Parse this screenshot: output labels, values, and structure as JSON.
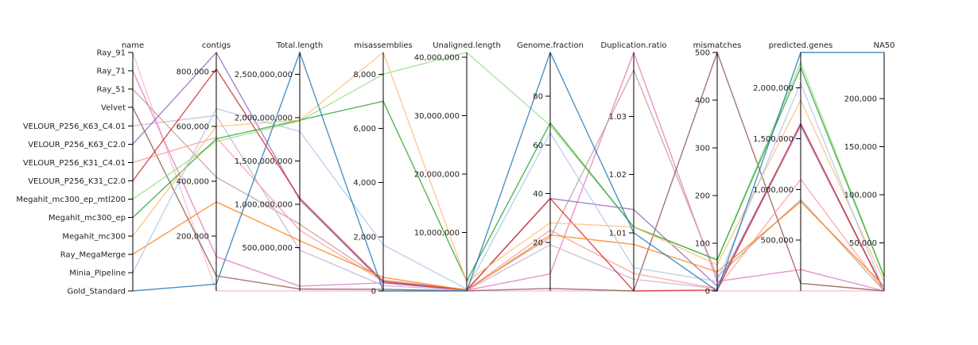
{
  "chart_data": {
    "type": "parallel-coordinates",
    "axes": [
      {
        "key": "name",
        "label": "name",
        "kind": "categorical",
        "categories": [
          "Ray_91",
          "Ray_71",
          "Ray_51",
          "Velvet",
          "VELOUR_P256_K63_C4.01",
          "VELOUR_P256_K63_C2.0",
          "VELOUR_P256_K31_C4.01",
          "VELOUR_P256_K31_C2.0",
          "Megahit_mc300_ep_mtl200",
          "Megahit_mc300_ep",
          "Megahit_mc300",
          "Ray_MegaMerge",
          "Minia_Pipeline",
          "Gold_Standard"
        ]
      },
      {
        "key": "contigs",
        "label": "contigs",
        "kind": "numeric",
        "range": [
          0,
          870000
        ],
        "ticks": [
          {
            "v": 200000,
            "label": "200,000"
          },
          {
            "v": 400000,
            "label": "400,000"
          },
          {
            "v": 600000,
            "label": "600,000"
          },
          {
            "v": 800000,
            "label": "800,000"
          }
        ]
      },
      {
        "key": "total_length",
        "label": "Total.length",
        "kind": "numeric",
        "range": [
          0,
          2750000000
        ],
        "ticks": [
          {
            "v": 500000000,
            "label": "500,000,000"
          },
          {
            "v": 1000000000,
            "label": "1,000,000,000"
          },
          {
            "v": 1500000000,
            "label": "1,500,000,000"
          },
          {
            "v": 2000000000,
            "label": "2,000,000,000"
          },
          {
            "v": 2500000000,
            "label": "2,500,000,000"
          }
        ]
      },
      {
        "key": "misassemblies",
        "label": "misassemblies",
        "kind": "numeric",
        "range": [
          0,
          8800
        ],
        "ticks": [
          {
            "v": 0,
            "label": "0"
          },
          {
            "v": 2000,
            "label": "2,000"
          },
          {
            "v": 4000,
            "label": "4,000"
          },
          {
            "v": 6000,
            "label": "6,000"
          },
          {
            "v": 8000,
            "label": "8,000"
          }
        ]
      },
      {
        "key": "unaligned_length",
        "label": "Unaligned.length",
        "kind": "numeric",
        "range": [
          0,
          40800000
        ],
        "ticks": [
          {
            "v": 10000000,
            "label": "10,000,000"
          },
          {
            "v": 20000000,
            "label": "20,000,000"
          },
          {
            "v": 30000000,
            "label": "30,000,000"
          },
          {
            "v": 40000000,
            "label": "40,000,000"
          }
        ]
      },
      {
        "key": "genome_fraction",
        "label": "Genome.fraction",
        "kind": "numeric",
        "range": [
          0,
          98
        ],
        "ticks": [
          {
            "v": 20,
            "label": "20"
          },
          {
            "v": 40,
            "label": "40"
          },
          {
            "v": 60,
            "label": "60"
          },
          {
            "v": 80,
            "label": "80"
          }
        ]
      },
      {
        "key": "duplication_ratio",
        "label": "Duplication.ratio",
        "kind": "numeric",
        "range": [
          1.0,
          1.041
        ],
        "ticks": [
          {
            "v": 1.01,
            "label": "1.01"
          },
          {
            "v": 1.02,
            "label": "1.02"
          },
          {
            "v": 1.03,
            "label": "1.03"
          }
        ]
      },
      {
        "key": "mismatches",
        "label": "mismatches",
        "kind": "numeric",
        "range": [
          0,
          500
        ],
        "ticks": [
          {
            "v": 0,
            "label": "0"
          },
          {
            "v": 100,
            "label": "100"
          },
          {
            "v": 200,
            "label": "200"
          },
          {
            "v": 300,
            "label": "300"
          },
          {
            "v": 400,
            "label": "400"
          },
          {
            "v": 500,
            "label": "500"
          }
        ]
      },
      {
        "key": "predicted_genes",
        "label": "predicted.genes",
        "kind": "numeric",
        "range": [
          0,
          2350000
        ],
        "ticks": [
          {
            "v": 500000,
            "label": "500,000"
          },
          {
            "v": 1000000,
            "label": "1,000,000"
          },
          {
            "v": 1500000,
            "label": "1,500,000"
          },
          {
            "v": 2000000,
            "label": "2,000,000"
          }
        ]
      },
      {
        "key": "na50",
        "label": "NA50",
        "kind": "numeric",
        "range": [
          0,
          248000
        ],
        "ticks": [
          {
            "v": 50000,
            "label": "50,000"
          },
          {
            "v": 100000,
            "label": "100,000"
          },
          {
            "v": 150000,
            "label": "150,000"
          },
          {
            "v": 200000,
            "label": "200,000"
          }
        ]
      }
    ],
    "series": [
      {
        "name": "Ray_91",
        "color": "#f7b6d2",
        "values": [
          "Ray_91",
          0,
          0,
          0,
          0,
          0,
          1.0,
          0,
          0,
          0
        ]
      },
      {
        "name": "Ray_71",
        "color": "#e377c2",
        "values": [
          "Ray_71",
          125000,
          55000000,
          300,
          120000,
          7,
          1.041,
          20,
          210000,
          0
        ]
      },
      {
        "name": "Ray_51",
        "color": "#c49c94",
        "values": [
          "Ray_51",
          415000,
          770000000,
          400,
          250000,
          22,
          1.038,
          30,
          900000,
          0
        ]
      },
      {
        "name": "Velvet",
        "color": "#8c564b",
        "values": [
          "Velvet",
          55000,
          22000000,
          60,
          30000,
          1,
          1.0,
          500,
          75000,
          0
        ]
      },
      {
        "name": "VELOUR_P256_K63_C4.01",
        "color": "#c5b0d5",
        "values": [
          "VELOUR_P256_K63_C4.01",
          640000,
          470000000,
          200,
          100000,
          19,
          1.002,
          5,
          1620000,
          0
        ]
      },
      {
        "name": "VELOUR_P256_K63_C2.0",
        "color": "#9467bd",
        "values": [
          "VELOUR_P256_K63_C2.0",
          870000,
          1050000000,
          300,
          150000,
          38,
          1.014,
          10,
          1640000,
          0
        ]
      },
      {
        "name": "VELOUR_P256_K31_C4.01",
        "color": "#ff9896",
        "values": [
          "VELOUR_P256_K31_C4.01",
          560000,
          700000000,
          350,
          140000,
          25,
          1.003,
          5,
          1100000,
          0
        ]
      },
      {
        "name": "VELOUR_P256_K31_C2.0",
        "color": "#d62728",
        "values": [
          "VELOUR_P256_K31_C2.0",
          810000,
          1070000000,
          350,
          150000,
          38,
          1.0,
          2,
          1650000,
          0
        ]
      },
      {
        "name": "Megahit_mc300_ep_mtl200",
        "color": "#98df8a",
        "values": [
          "Megahit_mc300_ep_mtl200",
          545000,
          1960000000,
          8000,
          40800000,
          68,
          1.011,
          65,
          2250000,
          15000
        ]
      },
      {
        "name": "Megahit_mc300_ep",
        "color": "#2ca02c",
        "values": [
          "Megahit_mc300_ep",
          555000,
          1970000000,
          7000,
          1700000,
          69,
          1.011,
          65,
          2200000,
          15000
        ]
      },
      {
        "name": "Megahit_mc300",
        "color": "#ffbb78",
        "values": [
          "Megahit_mc300",
          600000,
          1970000000,
          8800,
          1600000,
          28,
          1.011,
          55,
          1880000,
          10000
        ]
      },
      {
        "name": "Ray_MegaMerge",
        "color": "#ff7f0e",
        "values": [
          "Ray_MegaMerge",
          325000,
          580000000,
          500,
          120000,
          23,
          1.008,
          40,
          880000,
          5000
        ]
      },
      {
        "name": "Minia_Pipeline",
        "color": "#aec7e8",
        "values": [
          "Minia_Pipeline",
          665000,
          1840000000,
          1700,
          320000,
          65,
          1.004,
          20,
          2050000,
          0
        ]
      },
      {
        "name": "Gold_Standard",
        "color": "#1f77b4",
        "values": [
          "Gold_Standard",
          25000,
          2750000000,
          0,
          0,
          98,
          1.01,
          0,
          2350000,
          248000
        ]
      }
    ]
  }
}
